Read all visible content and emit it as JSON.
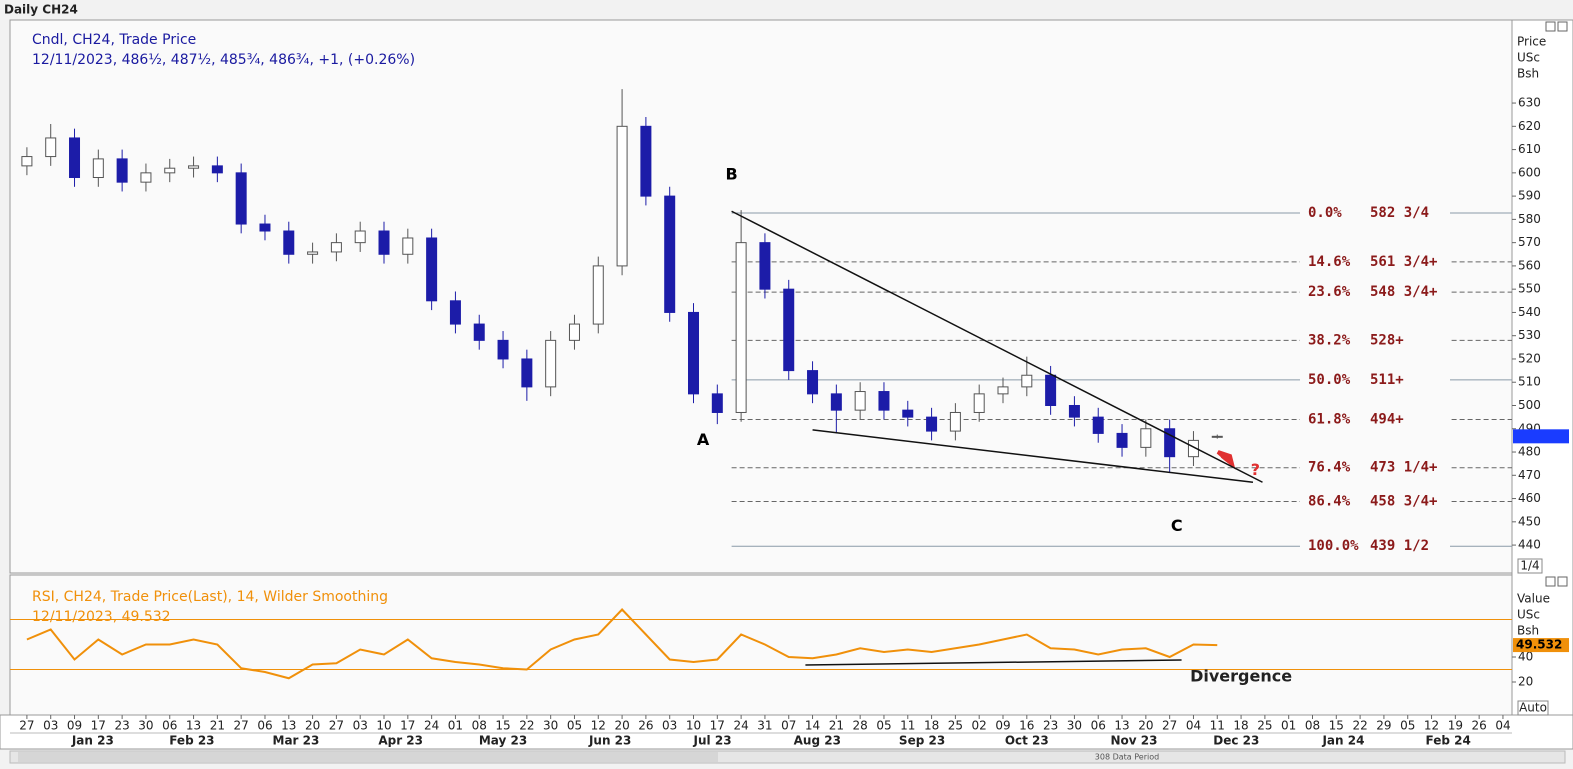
{
  "header": "Daily CH24",
  "footer": "308 Data Period",
  "controls": [
    "1/4",
    "Auto"
  ],
  "chart_data": [
    {
      "type": "candlestick",
      "legend": [
        "Cndl, CH24, Trade Price",
        "12/11/2023, 486½, 487½, 485¾, 486¾, +1, (+0.26%)"
      ],
      "axis_title": [
        "Price",
        "USc",
        "Bsh"
      ],
      "up_color": "#ffffff",
      "down_color": "#1c1ca8",
      "legend_color": "#1a1aa0",
      "x": [
        0,
        1,
        2,
        3,
        4,
        5,
        6,
        7,
        8,
        9,
        10,
        11,
        12,
        13,
        14,
        15,
        16,
        17,
        18,
        19,
        20,
        21,
        22,
        23,
        24,
        25,
        26,
        27,
        28,
        29,
        30,
        31,
        32,
        33,
        34,
        35,
        36,
        37,
        38,
        39,
        40,
        41,
        42,
        43,
        44,
        45,
        46,
        47,
        48,
        49,
        50
      ],
      "open": [
        603,
        607,
        615,
        598,
        606,
        596,
        600,
        602,
        603,
        600,
        578,
        575,
        565,
        566,
        570,
        575,
        565,
        572,
        545,
        535,
        528,
        520,
        508,
        528,
        535,
        560,
        620,
        590,
        540,
        505,
        497,
        570,
        550,
        515,
        505,
        498,
        506,
        498,
        495,
        489,
        497,
        505,
        508,
        513,
        500,
        495,
        488,
        482,
        490,
        478,
        486.5
      ],
      "high": [
        611,
        621,
        619,
        610,
        610,
        604,
        606,
        607,
        607,
        604,
        582,
        579,
        570,
        574,
        579,
        579,
        576,
        576,
        549,
        539,
        532,
        524,
        532,
        539,
        564,
        636,
        624,
        594,
        544,
        509,
        584,
        574,
        554,
        519,
        509,
        510,
        510,
        502,
        499,
        501,
        509,
        512,
        521,
        517,
        504,
        499,
        492,
        494,
        494,
        489,
        487.5
      ],
      "low": [
        599,
        603,
        594,
        594,
        592,
        592,
        596,
        598,
        596,
        574,
        571,
        561,
        561,
        562,
        566,
        561,
        561,
        541,
        531,
        524,
        516,
        502,
        504,
        524,
        531,
        556,
        586,
        536,
        501,
        492,
        493,
        546,
        511,
        501,
        488,
        494,
        494,
        491,
        485,
        485,
        493,
        501,
        504,
        496,
        491,
        484,
        478,
        478,
        471,
        474,
        485.75
      ],
      "close": [
        607,
        615,
        598,
        606,
        596,
        600,
        602,
        603,
        600,
        578,
        575,
        565,
        566,
        570,
        575,
        565,
        572,
        545,
        535,
        528,
        520,
        508,
        528,
        535,
        560,
        620,
        590,
        540,
        505,
        497,
        570,
        550,
        515,
        505,
        498,
        506,
        498,
        495,
        489,
        497,
        505,
        508,
        513,
        500,
        495,
        488,
        482,
        490,
        478,
        485,
        486.75
      ],
      "xlim": [
        -0.71,
        62.38
      ],
      "ylim": [
        428,
        665.7
      ],
      "yticks": [
        440,
        450,
        460,
        470,
        480,
        490,
        500,
        510,
        520,
        530,
        540,
        550,
        560,
        570,
        580,
        590,
        600,
        610,
        620,
        630
      ],
      "xticks": [
        {
          "value": 0,
          "label": "27"
        },
        {
          "value": 1,
          "label": "03"
        },
        {
          "value": 2,
          "label": "09"
        },
        {
          "value": 3,
          "label": "17"
        },
        {
          "value": 4,
          "label": "23"
        },
        {
          "value": 5,
          "label": "30"
        },
        {
          "value": 6,
          "label": "06"
        },
        {
          "value": 7,
          "label": "13"
        },
        {
          "value": 8,
          "label": "21"
        },
        {
          "value": 9,
          "label": "27"
        },
        {
          "value": 10,
          "label": "06"
        },
        {
          "value": 11,
          "label": "13"
        },
        {
          "value": 12,
          "label": "20"
        },
        {
          "value": 13,
          "label": "27"
        },
        {
          "value": 14,
          "label": "03"
        },
        {
          "value": 15,
          "label": "10"
        },
        {
          "value": 16,
          "label": "17"
        },
        {
          "value": 17,
          "label": "24"
        },
        {
          "value": 18,
          "label": "01"
        },
        {
          "value": 19,
          "label": "08"
        },
        {
          "value": 20,
          "label": "15"
        },
        {
          "value": 21,
          "label": "22"
        },
        {
          "value": 22,
          "label": "30"
        },
        {
          "value": 23,
          "label": "05"
        },
        {
          "value": 24,
          "label": "12"
        },
        {
          "value": 25,
          "label": "20"
        },
        {
          "value": 26,
          "label": "26"
        },
        {
          "value": 27,
          "label": "03"
        },
        {
          "value": 28,
          "label": "10"
        },
        {
          "value": 29,
          "label": "17"
        },
        {
          "value": 30,
          "label": "24"
        },
        {
          "value": 31,
          "label": "31"
        },
        {
          "value": 32,
          "label": "07"
        },
        {
          "value": 33,
          "label": "14"
        },
        {
          "value": 34,
          "label": "21"
        },
        {
          "value": 35,
          "label": "28"
        },
        {
          "value": 36,
          "label": "05"
        },
        {
          "value": 37,
          "label": "11"
        },
        {
          "value": 38,
          "label": "18"
        },
        {
          "value": 39,
          "label": "25"
        },
        {
          "value": 40,
          "label": "02"
        },
        {
          "value": 41,
          "label": "09"
        },
        {
          "value": 42,
          "label": "16"
        },
        {
          "value": 43,
          "label": "23"
        },
        {
          "value": 44,
          "label": "30"
        },
        {
          "value": 45,
          "label": "06"
        },
        {
          "value": 46,
          "label": "13"
        },
        {
          "value": 47,
          "label": "20"
        },
        {
          "value": 48,
          "label": "27"
        },
        {
          "value": 49,
          "label": "04"
        },
        {
          "value": 50,
          "label": "11"
        },
        {
          "value": 51,
          "label": "18"
        },
        {
          "value": 52,
          "label": "25"
        },
        {
          "value": 53,
          "label": "01"
        },
        {
          "value": 54,
          "label": "08"
        },
        {
          "value": 55,
          "label": "15"
        },
        {
          "value": 56,
          "label": "22"
        },
        {
          "value": 57,
          "label": "29"
        },
        {
          "value": 58,
          "label": "05"
        },
        {
          "value": 59,
          "label": "12"
        },
        {
          "value": 60,
          "label": "19"
        },
        {
          "value": 61,
          "label": "26"
        },
        {
          "value": 62,
          "label": "04"
        }
      ],
      "xticks_major": [
        {
          "value": 2.77,
          "label": "Jan 23"
        },
        {
          "value": 6.93,
          "label": "Feb 23"
        },
        {
          "value": 11.3,
          "label": "Mar 23"
        },
        {
          "value": 15.7,
          "label": "Apr 23"
        },
        {
          "value": 20,
          "label": "May 23"
        },
        {
          "value": 24.5,
          "label": "Jun 23"
        },
        {
          "value": 28.8,
          "label": "Jul 23"
        },
        {
          "value": 33.2,
          "label": "Aug 23"
        },
        {
          "value": 37.6,
          "label": "Sep 23"
        },
        {
          "value": 42,
          "label": "Oct 23"
        },
        {
          "value": 46.5,
          "label": "Nov 23"
        },
        {
          "value": 50.8,
          "label": "Dec 23"
        },
        {
          "value": 55.3,
          "label": "Jan 24"
        },
        {
          "value": 59.7,
          "label": "Feb 24"
        }
      ],
      "fib": {
        "start_x": 29.6,
        "color": "#8b1a1a",
        "levels": [
          {
            "ratio": "0.0%",
            "label": "582 3/4",
            "value": 582.75,
            "dashed": false
          },
          {
            "ratio": "14.6%",
            "label": "561 3/4+",
            "value": 561.75,
            "dashed": true
          },
          {
            "ratio": "23.6%",
            "label": "548 3/4+",
            "value": 548.75,
            "dashed": true
          },
          {
            "ratio": "38.2%",
            "label": "528+",
            "value": 528,
            "dashed": true
          },
          {
            "ratio": "50.0%",
            "label": "511+",
            "value": 511,
            "dashed": false
          },
          {
            "ratio": "61.8%",
            "label": "494+",
            "value": 494,
            "dashed": true
          },
          {
            "ratio": "76.4%",
            "label": "473 1/4+",
            "value": 473.25,
            "dashed": true
          },
          {
            "ratio": "86.4%",
            "label": "458 3/4+",
            "value": 458.75,
            "dashed": true
          },
          {
            "ratio": "100.0%",
            "label": "439 1/2",
            "value": 439.5,
            "dashed": false
          }
        ]
      },
      "trendlines": [
        {
          "x": [
            29.6,
            51.9
          ],
          "y": [
            583.5,
            467
          ]
        },
        {
          "x": [
            33,
            51.5
          ],
          "y": [
            489.5,
            467
          ]
        }
      ],
      "annotations": [
        {
          "text": "A",
          "x": 28.4,
          "y": 485,
          "color": "#000000"
        },
        {
          "text": "B",
          "x": 29.6,
          "y": 599,
          "color": "#000000"
        },
        {
          "text": "C",
          "x": 48.3,
          "y": 448,
          "color": "#000000"
        },
        {
          "text": "?",
          "x": 51.6,
          "y": 472,
          "color": "#e03030"
        }
      ]
    },
    {
      "type": "line",
      "legend": [
        "RSI, CH24, Trade Price(Last),  14, Wilder Smoothing",
        "12/11/2023, 49.532"
      ],
      "axis_title": [
        "Value",
        "USc",
        "Bsh"
      ],
      "color": "#f0900a",
      "x": [
        0,
        1,
        2,
        3,
        4,
        5,
        6,
        7,
        8,
        9,
        10,
        11,
        12,
        13,
        14,
        15,
        16,
        17,
        18,
        19,
        20,
        21,
        22,
        23,
        24,
        25,
        26,
        27,
        28,
        29,
        30,
        31,
        32,
        33,
        34,
        35,
        36,
        37,
        38,
        39,
        40,
        41,
        42,
        43,
        44,
        45,
        46,
        47,
        48,
        49,
        50
      ],
      "values": [
        54,
        62,
        38,
        54,
        42,
        50,
        50,
        54,
        50,
        31,
        28,
        23,
        34,
        35,
        46,
        42,
        54,
        39,
        36,
        34,
        31,
        30,
        46,
        54,
        58,
        78,
        58,
        38,
        36,
        38,
        58,
        50,
        40,
        39,
        42,
        47,
        44,
        46,
        44,
        47,
        50,
        54,
        58,
        47,
        46,
        42,
        46,
        47,
        40,
        50,
        49.532
      ],
      "ylim": [
        -6.4,
        104
      ],
      "yticks": [
        20,
        40
      ],
      "levels": [
        70,
        30
      ],
      "trendline": {
        "x": [
          32.7,
          48.5
        ],
        "y": [
          33.6,
          37.6
        ]
      },
      "annotations": [
        {
          "text": "Divergence",
          "x": 51,
          "y": 24
        }
      ]
    }
  ]
}
